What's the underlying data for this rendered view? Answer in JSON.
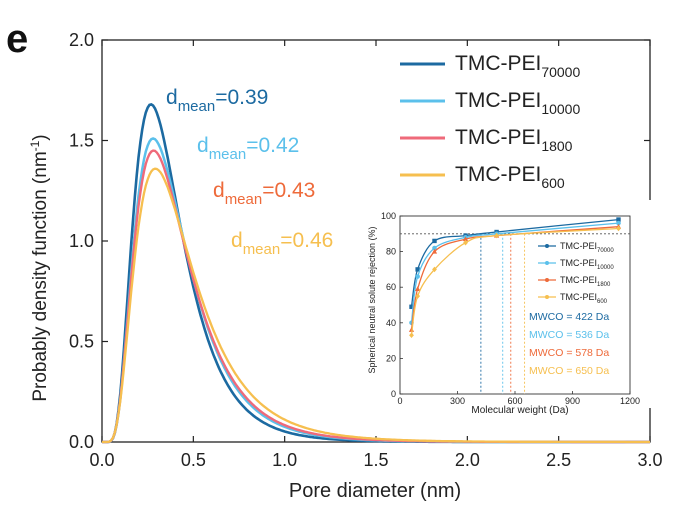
{
  "panel_label": "e",
  "chart_data": [
    {
      "type": "line",
      "xlabel": "Pore diameter (nm)",
      "ylabel": "Probably density function (nm",
      "ylabel_sup": "-1",
      "ylabel_end": ")",
      "xlim": [
        0.0,
        3.0
      ],
      "ylim": [
        0.0,
        2.0
      ],
      "x_ticks": [
        "0.0",
        "0.5",
        "1.0",
        "1.5",
        "2.0",
        "2.5",
        "3.0"
      ],
      "y_ticks": [
        "0.0",
        "0.5",
        "1.0",
        "1.5",
        "2.0"
      ],
      "x_tick_values": [
        0.0,
        0.5,
        1.0,
        1.5,
        2.0,
        2.5,
        3.0
      ],
      "y_tick_values": [
        0.0,
        0.5,
        1.0,
        1.5,
        2.0
      ],
      "legend_placement": "top-right",
      "series": [
        {
          "name": "TMC-PEI",
          "name_sub": "70000",
          "color": "#1c6aa1",
          "mean": 0.39,
          "peak": 1.68,
          "sigma_ln": 0.5,
          "annotation": {
            "prefix": "d",
            "sub": "mean",
            "value": "=0.39"
          }
        },
        {
          "name": "TMC-PEI",
          "name_sub": "10000",
          "color": "#5bc0eb",
          "mean": 0.42,
          "peak": 1.51,
          "sigma_ln": 0.52,
          "annotation": {
            "prefix": "d",
            "sub": "mean",
            "value": "=0.42"
          }
        },
        {
          "name": "TMC-PEI",
          "name_sub": "1800",
          "color": "#ef6a7a",
          "mean": 0.43,
          "peak": 1.45,
          "sigma_ln": 0.53,
          "annotation": {
            "prefix": "d",
            "sub": "mean",
            "value": "=0.43"
          }
        },
        {
          "name": "TMC-PEI",
          "name_sub": "600",
          "color": "#f6bf4f",
          "mean": 0.46,
          "peak": 1.36,
          "sigma_ln": 0.55,
          "annotation": {
            "prefix": "d",
            "sub": "mean",
            "value": "=0.46"
          }
        }
      ],
      "annotation_colors": [
        "#1c6aa1",
        "#5bc0eb",
        "#ee6a3a",
        "#f6bf4f"
      ]
    },
    {
      "type": "line",
      "xlabel": "Molecular weight (Da)",
      "ylabel": "Spherical neutral solute rejection (%)",
      "xlim": [
        0,
        1200
      ],
      "ylim": [
        0,
        100
      ],
      "x_ticks": [
        "0",
        "300",
        "600",
        "900",
        "1200"
      ],
      "y_ticks": [
        "0",
        "20",
        "40",
        "60",
        "80",
        "100"
      ],
      "x_tick_values": [
        0,
        300,
        600,
        900,
        1200
      ],
      "y_tick_values": [
        0,
        20,
        40,
        60,
        80,
        100
      ],
      "reference_line_y": 90,
      "legend_placement": "top-right",
      "x": [
        60,
        92,
        180,
        342,
        504,
        1140
      ],
      "series": [
        {
          "name": "TMC-PEI",
          "name_sub": "70000",
          "color": "#1c6aa1",
          "marker": "square",
          "values": [
            49,
            70,
            86,
            89,
            91,
            98
          ],
          "mwco": "MWCO = 422 Da",
          "mwco_value": 422
        },
        {
          "name": "TMC-PEI",
          "name_sub": "10000",
          "color": "#5bc0eb",
          "marker": "circle",
          "values": [
            40,
            66,
            82,
            88,
            90,
            96
          ],
          "mwco": "MWCO = 536 Da",
          "mwco_value": 536
        },
        {
          "name": "TMC-PEI",
          "name_sub": "1800",
          "color": "#ee6a3a",
          "marker": "triangle",
          "values": [
            36,
            59,
            80,
            87,
            89,
            94
          ],
          "mwco": "MWCO = 578 Da",
          "mwco_value": 578
        },
        {
          "name": "TMC-PEI",
          "name_sub": "600",
          "color": "#f6bf4f",
          "marker": "diamond",
          "values": [
            33,
            55,
            70,
            85,
            89,
            93
          ],
          "mwco": "MWCO = 650 Da",
          "mwco_value": 650
        }
      ]
    }
  ]
}
